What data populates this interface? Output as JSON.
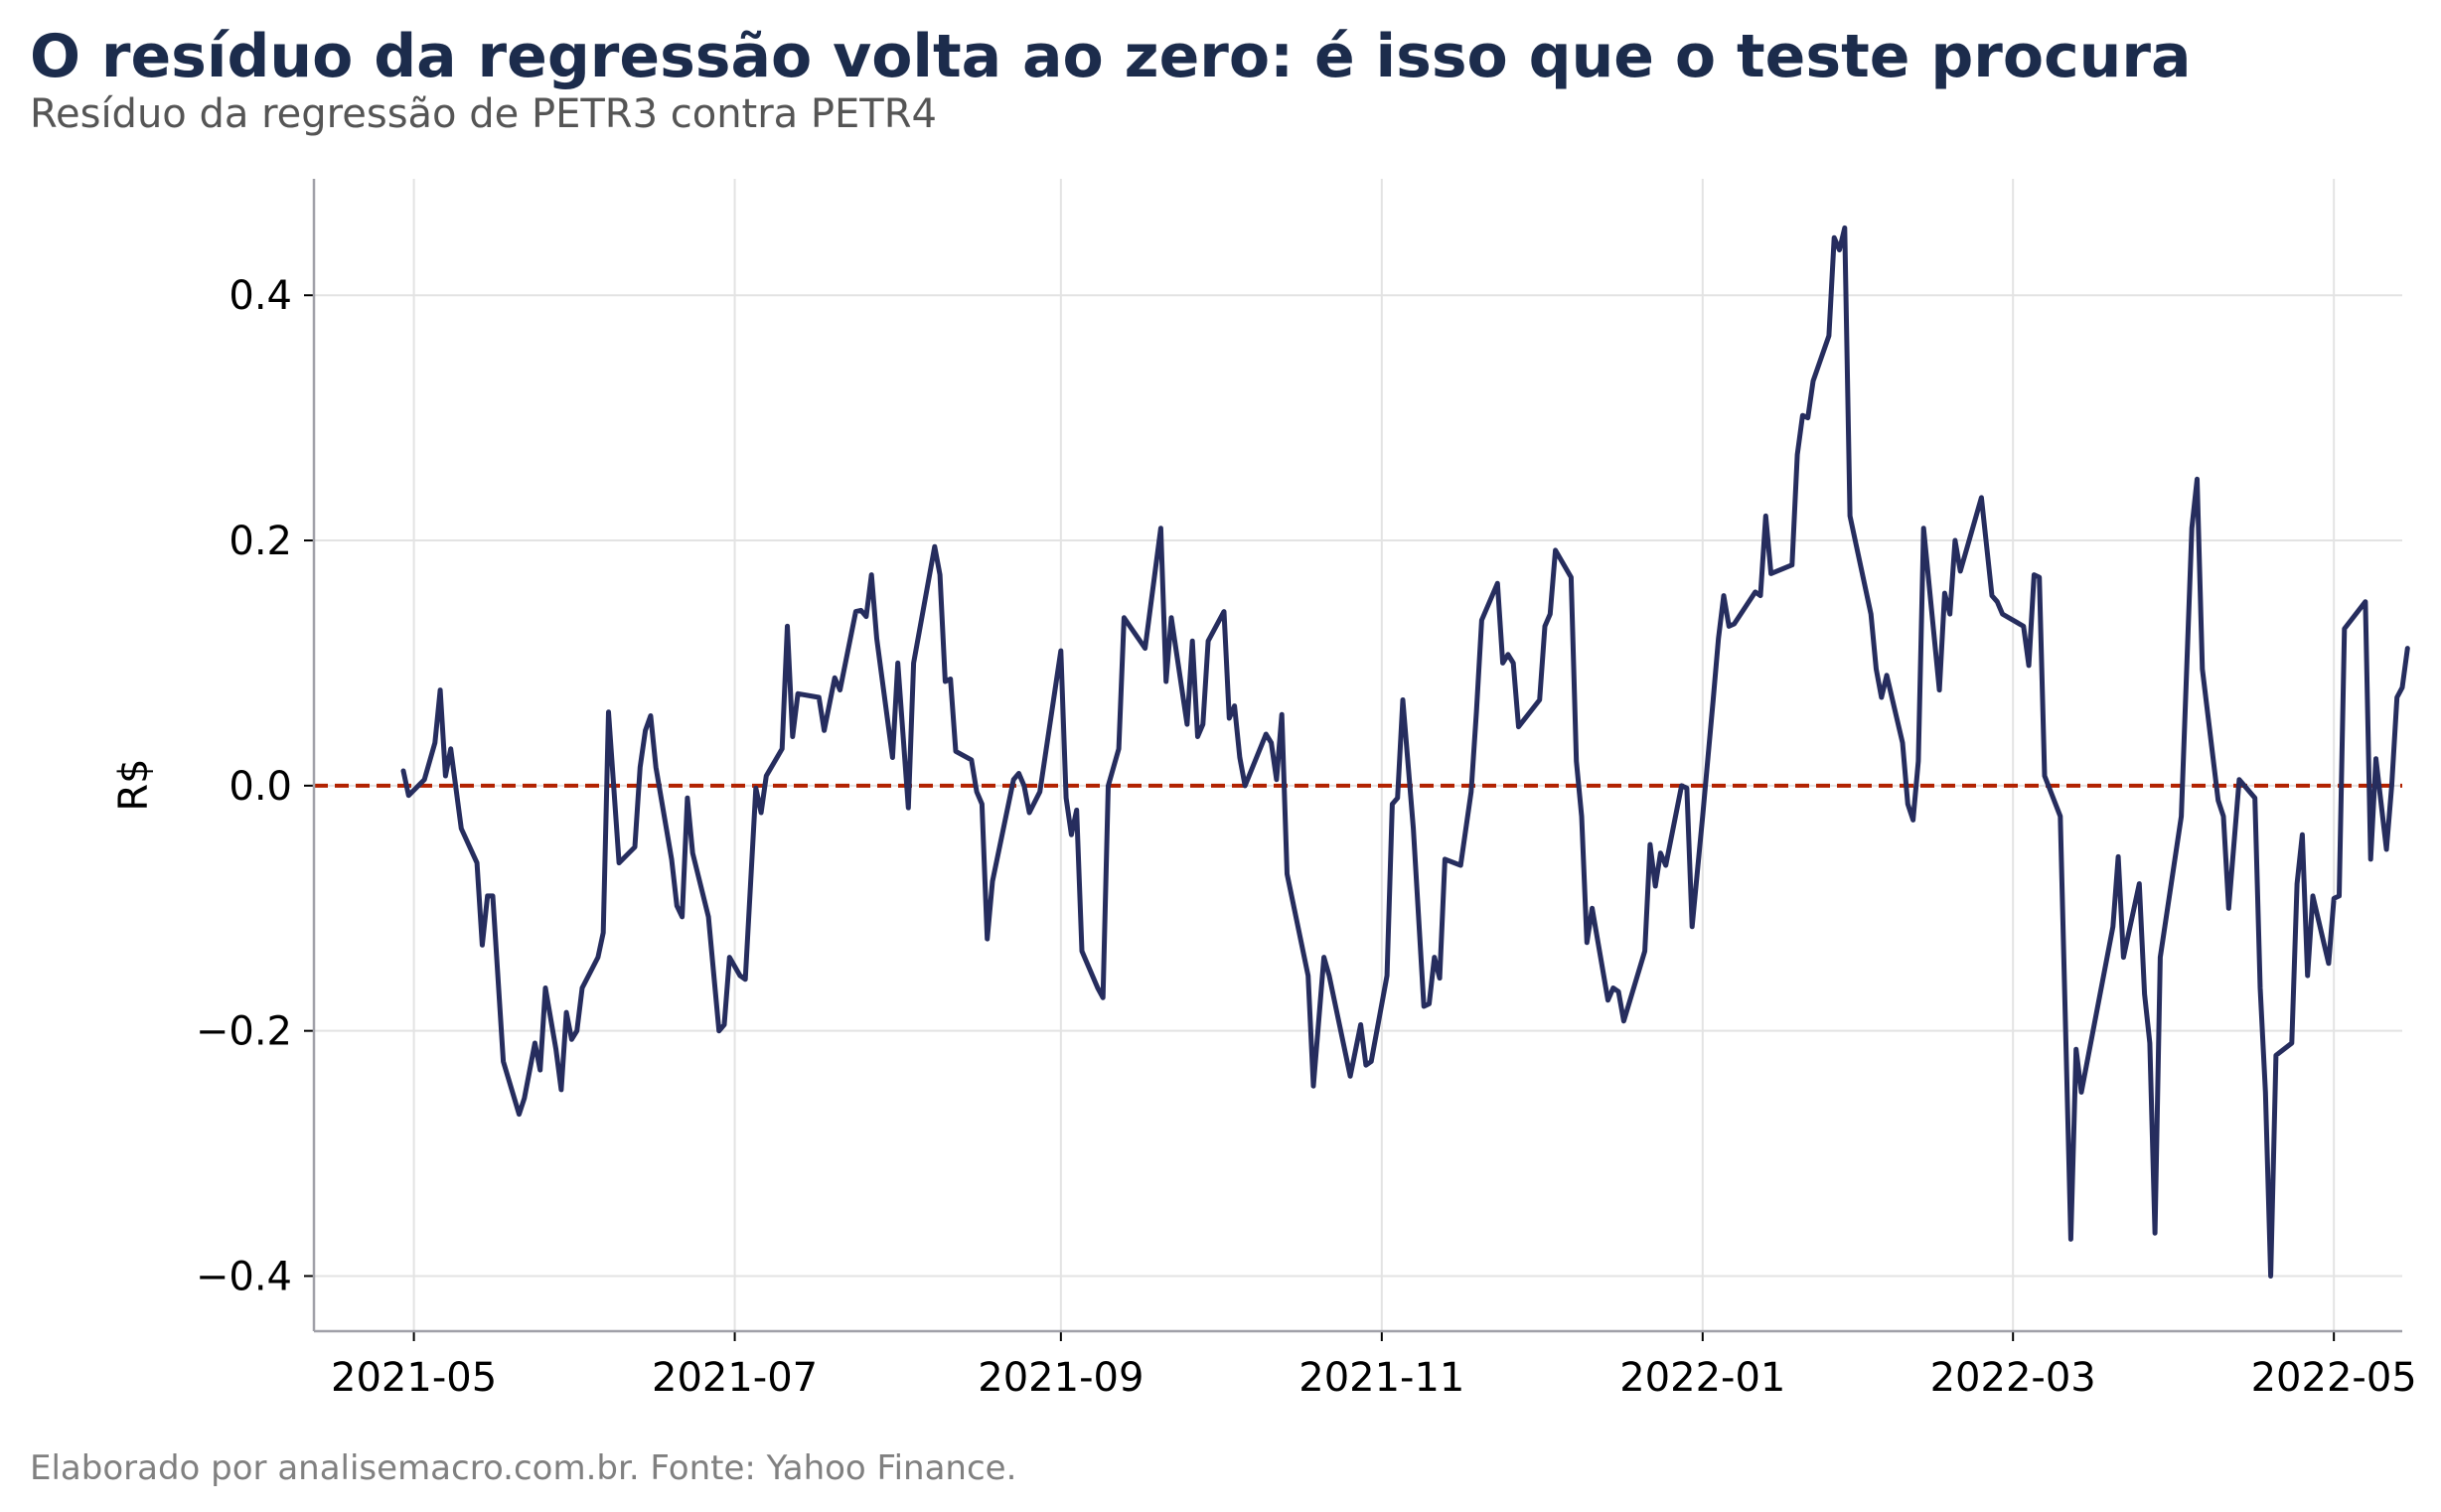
{
  "chart_data": {
    "type": "line",
    "title": "O resíduo da regressão volta ao zero: é isso que o teste procura",
    "subtitle": "Resíduo da regressão de PETR3 contra PETR4",
    "source": "Elaborado por analisemacro.com.br. Fonte: Yahoo Finance.",
    "xlabel": "",
    "ylabel": "R$",
    "x_ticks": [
      "2021-05",
      "2021-07",
      "2021-09",
      "2021-11",
      "2022-01",
      "2022-03",
      "2022-05"
    ],
    "y_ticks": [
      0.4,
      0.2,
      0.0,
      -0.2,
      -0.4
    ],
    "y_tick_labels": [
      "0.4",
      "0.2",
      "0.0",
      "−0.2",
      "−0.4"
    ],
    "xlim": [
      "2021-04-12",
      "2022-05-14"
    ],
    "ylim": [
      -0.445,
      0.495
    ],
    "grid": true,
    "reference_line": {
      "y": 0.0,
      "color": "#b22200",
      "style": "dashed"
    },
    "series_color": "#262d5e",
    "series": [
      {
        "values": [
          [
            "2021-04-29",
            0.012
          ],
          [
            "2021-04-30",
            -0.008
          ],
          [
            "2021-05-03",
            0.005
          ],
          [
            "2021-05-05",
            0.035
          ],
          [
            "2021-05-06",
            0.078
          ],
          [
            "2021-05-07",
            0.008
          ],
          [
            "2021-05-08",
            0.03
          ],
          [
            "2021-05-10",
            -0.035
          ],
          [
            "2021-05-13",
            -0.063
          ],
          [
            "2021-05-14",
            -0.13
          ],
          [
            "2021-05-15",
            -0.09
          ],
          [
            "2021-05-16",
            -0.09
          ],
          [
            "2021-05-18",
            -0.225
          ],
          [
            "2021-05-21",
            -0.268
          ],
          [
            "2021-05-22",
            -0.255
          ],
          [
            "2021-05-24",
            -0.21
          ],
          [
            "2021-05-25",
            -0.232
          ],
          [
            "2021-05-26",
            -0.165
          ],
          [
            "2021-05-28",
            -0.215
          ],
          [
            "2021-05-29",
            -0.248
          ],
          [
            "2021-05-30",
            -0.185
          ],
          [
            "2021-05-31",
            -0.207
          ],
          [
            "2021-06-01",
            -0.2
          ],
          [
            "2021-06-02",
            -0.165
          ],
          [
            "2021-06-05",
            -0.14
          ],
          [
            "2021-06-06",
            -0.12
          ],
          [
            "2021-06-07",
            0.06
          ],
          [
            "2021-06-09",
            -0.063
          ],
          [
            "2021-06-12",
            -0.05
          ],
          [
            "2021-06-13",
            0.015
          ],
          [
            "2021-06-14",
            0.045
          ],
          [
            "2021-06-15",
            0.057
          ],
          [
            "2021-06-16",
            0.015
          ],
          [
            "2021-06-19",
            -0.06
          ],
          [
            "2021-06-20",
            -0.098
          ],
          [
            "2021-06-21",
            -0.107
          ],
          [
            "2021-06-22",
            -0.01
          ],
          [
            "2021-06-23",
            -0.055
          ],
          [
            "2021-06-26",
            -0.107
          ],
          [
            "2021-06-28",
            -0.2
          ],
          [
            "2021-06-29",
            -0.195
          ],
          [
            "2021-06-30",
            -0.14
          ],
          [
            "2021-07-02",
            -0.155
          ],
          [
            "2021-07-03",
            -0.158
          ],
          [
            "2021-07-05",
            -0.002
          ],
          [
            "2021-07-06",
            -0.022
          ],
          [
            "2021-07-07",
            0.008
          ],
          [
            "2021-07-10",
            0.03
          ],
          [
            "2021-07-11",
            0.13
          ],
          [
            "2021-07-12",
            0.04
          ],
          [
            "2021-07-13",
            0.075
          ],
          [
            "2021-07-17",
            0.072
          ],
          [
            "2021-07-18",
            0.045
          ],
          [
            "2021-07-20",
            0.088
          ],
          [
            "2021-07-21",
            0.078
          ],
          [
            "2021-07-24",
            0.142
          ],
          [
            "2021-07-25",
            0.143
          ],
          [
            "2021-07-26",
            0.138
          ],
          [
            "2021-07-27",
            0.172
          ],
          [
            "2021-07-28",
            0.12
          ],
          [
            "2021-07-31",
            0.023
          ],
          [
            "2021-08-01",
            0.1
          ],
          [
            "2021-08-03",
            -0.018
          ],
          [
            "2021-08-04",
            0.1
          ],
          [
            "2021-08-08",
            0.195
          ],
          [
            "2021-08-09",
            0.172
          ],
          [
            "2021-08-10",
            0.085
          ],
          [
            "2021-08-11",
            0.087
          ],
          [
            "2021-08-12",
            0.028
          ],
          [
            "2021-08-15",
            0.021
          ],
          [
            "2021-08-16",
            -0.005
          ],
          [
            "2021-08-17",
            -0.015
          ],
          [
            "2021-08-18",
            -0.125
          ],
          [
            "2021-08-19",
            -0.078
          ],
          [
            "2021-08-23",
            0.005
          ],
          [
            "2021-08-24",
            0.01
          ],
          [
            "2021-08-25",
            0.0
          ],
          [
            "2021-08-26",
            -0.022
          ],
          [
            "2021-08-28",
            -0.005
          ],
          [
            "2021-09-01",
            0.11
          ],
          [
            "2021-09-02",
            -0.01
          ],
          [
            "2021-09-03",
            -0.04
          ],
          [
            "2021-09-04",
            -0.02
          ],
          [
            "2021-09-05",
            -0.135
          ],
          [
            "2021-09-08",
            -0.165
          ],
          [
            "2021-09-09",
            -0.173
          ],
          [
            "2021-09-10",
            0.0
          ],
          [
            "2021-09-12",
            0.03
          ],
          [
            "2021-09-13",
            0.137
          ],
          [
            "2021-09-17",
            0.112
          ],
          [
            "2021-09-20",
            0.21
          ],
          [
            "2021-09-21",
            0.085
          ],
          [
            "2021-09-22",
            0.137
          ],
          [
            "2021-09-25",
            0.05
          ],
          [
            "2021-09-26",
            0.118
          ],
          [
            "2021-09-27",
            0.04
          ],
          [
            "2021-09-28",
            0.05
          ],
          [
            "2021-09-29",
            0.118
          ],
          [
            "2021-10-02",
            0.142
          ],
          [
            "2021-10-03",
            0.055
          ],
          [
            "2021-10-04",
            0.065
          ],
          [
            "2021-10-05",
            0.023
          ],
          [
            "2021-10-06",
            0.0
          ],
          [
            "2021-10-10",
            0.042
          ],
          [
            "2021-10-11",
            0.035
          ],
          [
            "2021-10-12",
            0.005
          ],
          [
            "2021-10-13",
            0.058
          ],
          [
            "2021-10-14",
            -0.072
          ],
          [
            "2021-10-18",
            -0.155
          ],
          [
            "2021-10-19",
            -0.245
          ],
          [
            "2021-10-21",
            -0.14
          ],
          [
            "2021-10-22",
            -0.155
          ],
          [
            "2021-10-26",
            -0.237
          ],
          [
            "2021-10-28",
            -0.195
          ],
          [
            "2021-10-29",
            -0.228
          ],
          [
            "2021-10-30",
            -0.225
          ],
          [
            "2021-11-02",
            -0.155
          ],
          [
            "2021-11-03",
            -0.015
          ],
          [
            "2021-11-04",
            -0.01
          ],
          [
            "2021-11-05",
            0.07
          ],
          [
            "2021-11-07",
            -0.035
          ],
          [
            "2021-11-09",
            -0.18
          ],
          [
            "2021-11-10",
            -0.178
          ],
          [
            "2021-11-11",
            -0.14
          ],
          [
            "2021-11-12",
            -0.157
          ],
          [
            "2021-11-13",
            -0.06
          ],
          [
            "2021-11-16",
            -0.065
          ],
          [
            "2021-11-18",
            -0.005
          ],
          [
            "2021-11-19",
            0.06
          ],
          [
            "2021-11-20",
            0.135
          ],
          [
            "2021-11-23",
            0.165
          ],
          [
            "2021-11-24",
            0.1
          ],
          [
            "2021-11-25",
            0.107
          ],
          [
            "2021-11-26",
            0.1
          ],
          [
            "2021-11-27",
            0.048
          ],
          [
            "2021-12-01",
            0.07
          ],
          [
            "2021-12-02",
            0.13
          ],
          [
            "2021-12-03",
            0.14
          ],
          [
            "2021-12-04",
            0.192
          ],
          [
            "2021-12-07",
            0.17
          ],
          [
            "2021-12-08",
            0.02
          ],
          [
            "2021-12-09",
            -0.025
          ],
          [
            "2021-12-10",
            -0.128
          ],
          [
            "2021-12-11",
            -0.1
          ],
          [
            "2021-12-14",
            -0.175
          ],
          [
            "2021-12-15",
            -0.165
          ],
          [
            "2021-12-16",
            -0.168
          ],
          [
            "2021-12-17",
            -0.192
          ],
          [
            "2021-12-21",
            -0.135
          ],
          [
            "2021-12-22",
            -0.048
          ],
          [
            "2021-12-23",
            -0.082
          ],
          [
            "2021-12-24",
            -0.055
          ],
          [
            "2021-12-25",
            -0.065
          ],
          [
            "2021-12-28",
            0.0
          ],
          [
            "2021-12-29",
            -0.002
          ],
          [
            "2021-12-30",
            -0.115
          ],
          [
            "2022-01-01",
            -0.025
          ],
          [
            "2022-01-03",
            0.07
          ],
          [
            "2022-01-04",
            0.12
          ],
          [
            "2022-01-05",
            0.155
          ],
          [
            "2022-01-06",
            0.13
          ],
          [
            "2022-01-07",
            0.132
          ],
          [
            "2022-01-11",
            0.158
          ],
          [
            "2022-01-12",
            0.155
          ],
          [
            "2022-01-13",
            0.22
          ],
          [
            "2022-01-14",
            0.173
          ],
          [
            "2022-01-18",
            0.18
          ],
          [
            "2022-01-19",
            0.27
          ],
          [
            "2022-01-20",
            0.302
          ],
          [
            "2022-01-21",
            0.3
          ],
          [
            "2022-01-22",
            0.33
          ],
          [
            "2022-01-25",
            0.367
          ],
          [
            "2022-01-26",
            0.447
          ],
          [
            "2022-01-27",
            0.437
          ],
          [
            "2022-01-28",
            0.455
          ],
          [
            "2022-01-29",
            0.22
          ],
          [
            "2022-02-02",
            0.14
          ],
          [
            "2022-02-03",
            0.095
          ],
          [
            "2022-02-04",
            0.072
          ],
          [
            "2022-02-05",
            0.09
          ],
          [
            "2022-02-08",
            0.035
          ],
          [
            "2022-02-09",
            -0.015
          ],
          [
            "2022-02-10",
            -0.028
          ],
          [
            "2022-02-11",
            0.02
          ],
          [
            "2022-02-12",
            0.21
          ],
          [
            "2022-02-15",
            0.078
          ],
          [
            "2022-02-16",
            0.157
          ],
          [
            "2022-02-17",
            0.14
          ],
          [
            "2022-02-18",
            0.2
          ],
          [
            "2022-02-19",
            0.175
          ],
          [
            "2022-02-23",
            0.235
          ],
          [
            "2022-02-25",
            0.155
          ],
          [
            "2022-02-26",
            0.15
          ],
          [
            "2022-02-27",
            0.14
          ],
          [
            "2022-03-03",
            0.13
          ],
          [
            "2022-03-04",
            0.098
          ],
          [
            "2022-03-05",
            0.172
          ],
          [
            "2022-03-06",
            0.17
          ],
          [
            "2022-03-07",
            0.008
          ],
          [
            "2022-03-10",
            -0.025
          ],
          [
            "2022-03-12",
            -0.37
          ],
          [
            "2022-03-13",
            -0.215
          ],
          [
            "2022-03-14",
            -0.25
          ],
          [
            "2022-03-20",
            -0.115
          ],
          [
            "2022-03-21",
            -0.058
          ],
          [
            "2022-03-22",
            -0.14
          ],
          [
            "2022-03-25",
            -0.08
          ],
          [
            "2022-03-26",
            -0.17
          ],
          [
            "2022-03-27",
            -0.21
          ],
          [
            "2022-03-28",
            -0.365
          ],
          [
            "2022-03-29",
            -0.14
          ],
          [
            "2022-04-02",
            -0.025
          ],
          [
            "2022-04-04",
            0.21
          ],
          [
            "2022-04-05",
            0.25
          ],
          [
            "2022-04-06",
            0.095
          ],
          [
            "2022-04-09",
            -0.012
          ],
          [
            "2022-04-10",
            -0.025
          ],
          [
            "2022-04-11",
            -0.1
          ],
          [
            "2022-04-13",
            0.005
          ],
          [
            "2022-04-16",
            -0.01
          ],
          [
            "2022-04-17",
            -0.165
          ],
          [
            "2022-04-18",
            -0.25
          ],
          [
            "2022-04-19",
            -0.4
          ],
          [
            "2022-04-20",
            -0.22
          ],
          [
            "2022-04-23",
            -0.21
          ],
          [
            "2022-04-24",
            -0.08
          ],
          [
            "2022-04-25",
            -0.04
          ],
          [
            "2022-04-26",
            -0.155
          ],
          [
            "2022-04-27",
            -0.09
          ],
          [
            "2022-04-30",
            -0.145
          ],
          [
            "2022-05-01",
            -0.092
          ],
          [
            "2022-05-02",
            -0.09
          ],
          [
            "2022-05-03",
            0.128
          ],
          [
            "2022-05-07",
            0.15
          ],
          [
            "2022-05-08",
            -0.06
          ],
          [
            "2022-05-09",
            0.022
          ],
          [
            "2022-05-11",
            -0.052
          ],
          [
            "2022-05-12",
            0.0
          ],
          [
            "2022-05-13",
            0.072
          ],
          [
            "2022-05-14",
            0.08
          ],
          [
            "2022-05-15",
            0.112
          ]
        ]
      }
    ]
  }
}
